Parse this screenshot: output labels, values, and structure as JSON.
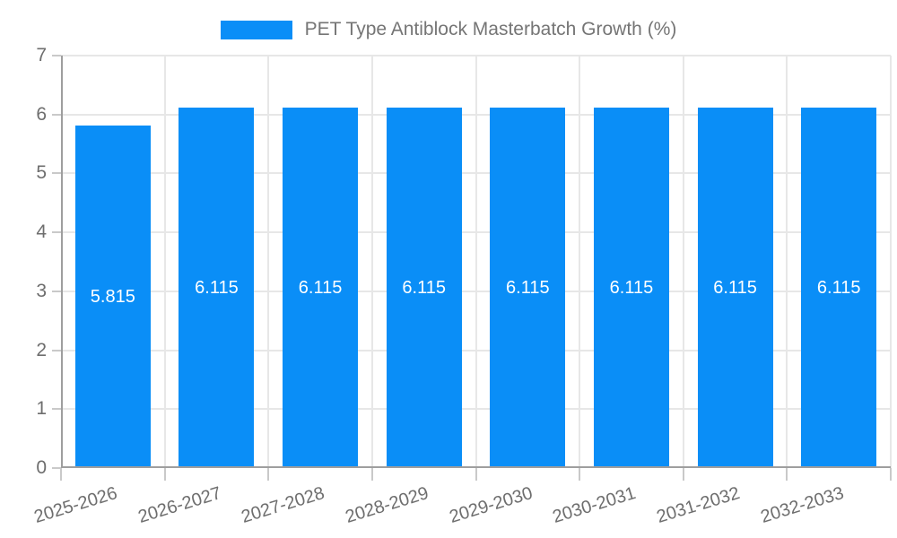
{
  "legend": {
    "label": "PET Type Antiblock Masterbatch Growth (%)",
    "swatch_color": "#0a8ef7"
  },
  "chart_data": {
    "type": "bar",
    "title": "PET Type Antiblock Masterbatch Growth (%)",
    "categories": [
      "2025-2026",
      "2026-2027",
      "2027-2028",
      "2028-2029",
      "2029-2030",
      "2030-2031",
      "2031-2032",
      "2032-2033"
    ],
    "values": [
      5.815,
      6.115,
      6.115,
      6.115,
      6.115,
      6.115,
      6.115,
      6.115
    ],
    "value_label_decimals": 3,
    "xlabel": "",
    "ylabel": "",
    "ylim": [
      0,
      7
    ],
    "yticks": [
      0,
      1,
      2,
      3,
      4,
      5,
      6,
      7
    ],
    "grid": true,
    "legend_position": "top-center",
    "value_labels_inside_bars": true,
    "colors": {
      "bar": "#0a8ef7",
      "grid": "#e7e7e7",
      "axis": "#9e9e9e",
      "tick": "#c9c9c9",
      "axis_text": "#6e6e6e",
      "legend_text": "#757575",
      "value_text": "#ffffff"
    }
  }
}
